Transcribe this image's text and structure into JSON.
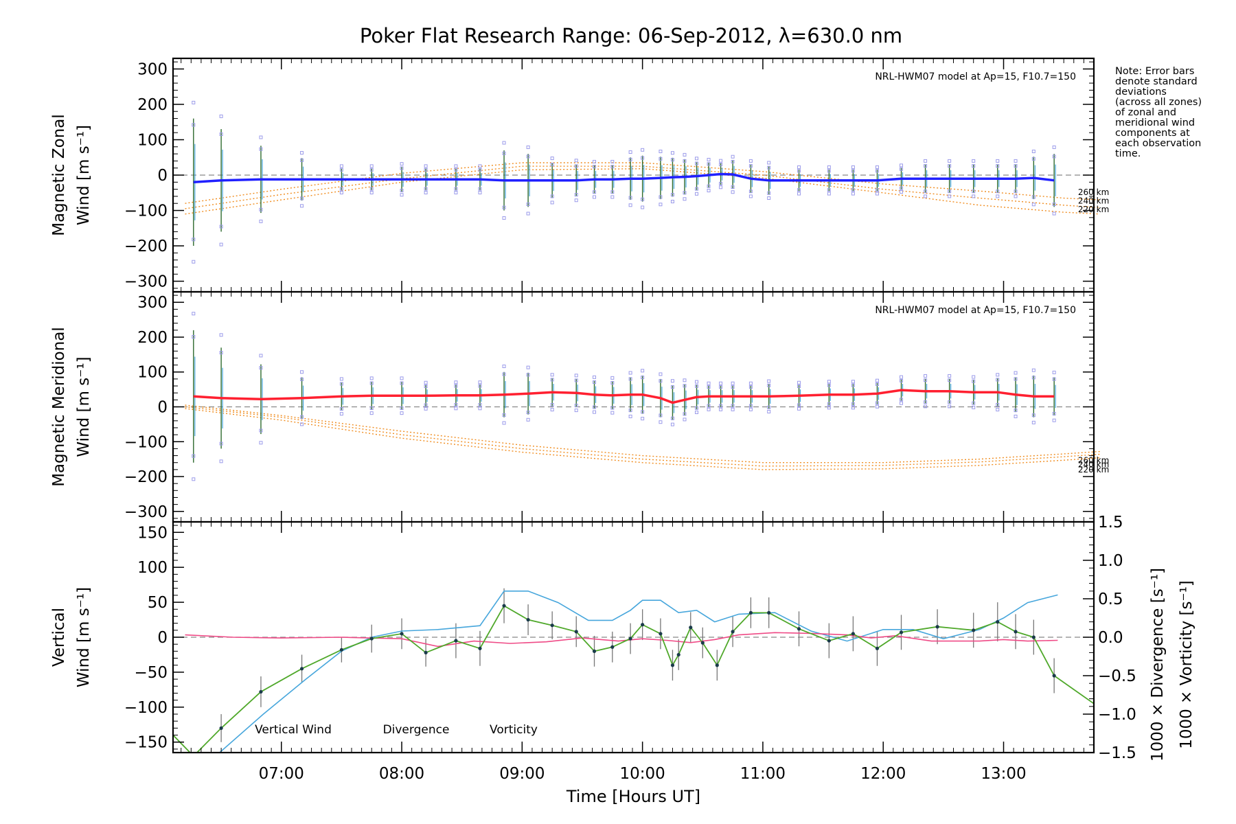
{
  "title": "Poker Flat Research Range: 06-Sep-2012, λ=630.0 nm",
  "note": [
    "Note: Error bars",
    "denote standard",
    "deviations",
    "(across all zones)",
    "of zonal and",
    "meridional wind",
    "components at",
    "each observation",
    "time."
  ],
  "colors": {
    "zonal": "#2020ff",
    "meridional": "#ff2030",
    "model": "#f08c1e",
    "vertical": "#4fa82a",
    "divergence": "#46a6dc",
    "vorticity": "#ef4a86",
    "scatter": "#9b9bea"
  },
  "chart_data": [
    {
      "type": "line",
      "ylabel": [
        "Magnetic Zonal",
        "Wind [m s⁻¹]"
      ],
      "model_label": "NRL-HWM07 model at Ap=15, F10.7=150",
      "ylim": [
        -330,
        330
      ],
      "yticks": [
        300,
        200,
        100,
        0,
        -100,
        -200,
        -300
      ],
      "series": [
        {
          "name": "Zonal wind",
          "x": [
            6.27,
            6.5,
            6.83,
            7.17,
            7.5,
            7.75,
            8.0,
            8.2,
            8.45,
            8.65,
            8.85,
            9.05,
            9.25,
            9.45,
            9.6,
            9.75,
            9.9,
            10.0,
            10.15,
            10.25,
            10.35,
            10.45,
            10.55,
            10.65,
            10.75,
            10.9,
            11.05,
            11.3,
            11.55,
            11.75,
            11.95,
            12.15,
            12.35,
            12.55,
            12.75,
            12.95,
            13.1,
            13.25,
            13.42
          ],
          "y": [
            -20,
            -15,
            -12,
            -12,
            -12,
            -12,
            -12,
            -12,
            -12,
            -12,
            -15,
            -15,
            -15,
            -15,
            -12,
            -12,
            -10,
            -10,
            -8,
            -6,
            -5,
            -3,
            0,
            3,
            2,
            -10,
            -15,
            -15,
            -15,
            -15,
            -15,
            -10,
            -10,
            -10,
            -10,
            -10,
            -10,
            -8,
            -15
          ],
          "err": [
            180,
            145,
            95,
            60,
            30,
            30,
            35,
            30,
            30,
            30,
            85,
            75,
            50,
            45,
            40,
            40,
            60,
            65,
            60,
            55,
            50,
            40,
            35,
            30,
            40,
            40,
            40,
            30,
            30,
            30,
            30,
            30,
            40,
            40,
            40,
            40,
            40,
            60,
            75
          ]
        }
      ],
      "model": [
        {
          "label": "260 km",
          "x": [
            6.2,
            7.0,
            8.0,
            9.0,
            10.0,
            11.0,
            12.0,
            12.8,
            13.5,
            13.8
          ],
          "y": [
            -80,
            -40,
            5,
            35,
            35,
            10,
            -25,
            -45,
            -65,
            -70
          ]
        },
        {
          "label": "240 km",
          "x": [
            6.2,
            7.0,
            8.0,
            9.0,
            10.0,
            11.0,
            12.0,
            12.8,
            13.5,
            13.8
          ],
          "y": [
            -95,
            -55,
            -10,
            25,
            25,
            0,
            -40,
            -65,
            -85,
            -92
          ]
        },
        {
          "label": "220 km",
          "x": [
            6.2,
            7.0,
            8.0,
            9.0,
            10.0,
            11.0,
            12.0,
            12.8,
            13.5,
            13.8
          ],
          "y": [
            -110,
            -70,
            -20,
            15,
            18,
            -8,
            -50,
            -85,
            -105,
            -110
          ]
        }
      ]
    },
    {
      "type": "line",
      "ylabel": [
        "Magnetic Meridional",
        "Wind [m s⁻¹]"
      ],
      "model_label": "NRL-HWM07 model at Ap=15, F10.7=150",
      "ylim": [
        -330,
        330
      ],
      "yticks": [
        300,
        200,
        100,
        0,
        -100,
        -200,
        -300
      ],
      "series": [
        {
          "name": "Meridional wind",
          "x": [
            6.27,
            6.5,
            6.83,
            7.17,
            7.5,
            7.75,
            8.0,
            8.2,
            8.45,
            8.65,
            8.85,
            9.05,
            9.25,
            9.45,
            9.6,
            9.75,
            9.9,
            10.0,
            10.15,
            10.25,
            10.35,
            10.45,
            10.55,
            10.65,
            10.75,
            10.9,
            11.05,
            11.3,
            11.55,
            11.75,
            11.95,
            12.15,
            12.35,
            12.55,
            12.75,
            12.95,
            13.1,
            13.25,
            13.42
          ],
          "y": [
            30,
            25,
            22,
            25,
            30,
            32,
            32,
            32,
            33,
            33,
            35,
            38,
            42,
            40,
            35,
            33,
            35,
            35,
            25,
            12,
            20,
            28,
            30,
            30,
            30,
            30,
            30,
            32,
            35,
            35,
            38,
            48,
            45,
            45,
            42,
            42,
            35,
            30,
            30
          ],
          "err": [
            190,
            145,
            100,
            60,
            40,
            40,
            40,
            30,
            30,
            30,
            65,
            60,
            40,
            40,
            40,
            40,
            50,
            55,
            55,
            50,
            45,
            35,
            30,
            30,
            30,
            30,
            35,
            30,
            30,
            30,
            30,
            30,
            35,
            35,
            35,
            40,
            50,
            60,
            55
          ]
        }
      ],
      "model": [
        {
          "label": "260 km",
          "x": [
            6.2,
            7.0,
            8.0,
            9.0,
            10.0,
            11.0,
            12.0,
            12.8,
            13.5,
            13.8
          ],
          "y": [
            5,
            -25,
            -70,
            -110,
            -140,
            -160,
            -160,
            -150,
            -135,
            -128
          ]
        },
        {
          "label": "240 km",
          "x": [
            6.2,
            7.0,
            8.0,
            9.0,
            10.0,
            11.0,
            12.0,
            12.8,
            13.5,
            13.8
          ],
          "y": [
            0,
            -30,
            -80,
            -120,
            -150,
            -170,
            -168,
            -158,
            -143,
            -136
          ]
        },
        {
          "label": "220 km",
          "x": [
            6.2,
            7.0,
            8.0,
            9.0,
            10.0,
            11.0,
            12.0,
            12.8,
            13.5,
            13.8
          ],
          "y": [
            -5,
            -38,
            -90,
            -130,
            -160,
            -180,
            -178,
            -168,
            -153,
            -146
          ]
        }
      ]
    },
    {
      "type": "line",
      "xlabel": "Time [Hours UT]",
      "ylabel": [
        "Vertical",
        "Wind [m s⁻¹]"
      ],
      "ylabel_right": [
        "1000 × Divergence [s⁻¹]",
        "1000 × Vorticity [s⁻¹]"
      ],
      "ylim": [
        -165,
        165
      ],
      "ylim_right": [
        -1.5,
        1.5
      ],
      "yticks": [
        150,
        100,
        50,
        0,
        -50,
        -100,
        -150
      ],
      "yticks_right": [
        "1.5",
        "1.0",
        "0.5",
        "0.0",
        "−0.5",
        "−1.0",
        "−1.5"
      ],
      "xticks": [
        "07:00",
        "08:00",
        "09:00",
        "10:00",
        "11:00",
        "12:00",
        "13:00"
      ],
      "xtick_values": [
        7,
        8,
        9,
        10,
        11,
        12,
        13
      ],
      "xlim": [
        6.1,
        13.75
      ],
      "legend": [
        "Vertical Wind",
        "Divergence",
        "Vorticity"
      ],
      "series": [
        {
          "name": "Vertical Wind",
          "x": [
            6.1,
            6.27,
            6.5,
            6.83,
            7.17,
            7.5,
            7.75,
            8.0,
            8.2,
            8.45,
            8.65,
            8.85,
            9.05,
            9.25,
            9.45,
            9.6,
            9.75,
            9.9,
            10.0,
            10.15,
            10.25,
            10.3,
            10.4,
            10.5,
            10.62,
            10.75,
            10.9,
            11.05,
            11.3,
            11.55,
            11.75,
            11.95,
            12.15,
            12.45,
            12.75,
            12.95,
            13.1,
            13.25,
            13.42,
            13.75
          ],
          "y": [
            -140,
            -170,
            -130,
            -78,
            -45,
            -18,
            -2,
            5,
            -22,
            -5,
            -16,
            45,
            25,
            17,
            8,
            -20,
            -14,
            -2,
            18,
            5,
            -40,
            -25,
            14,
            -8,
            -40,
            8,
            35,
            35,
            12,
            -5,
            5,
            -16,
            7,
            15,
            10,
            22,
            8,
            0,
            -55,
            -95
          ],
          "err": [
            0,
            0,
            20,
            22,
            20,
            18,
            20,
            22,
            20,
            25,
            25,
            25,
            22,
            20,
            22,
            22,
            22,
            22,
            22,
            22,
            22,
            22,
            22,
            22,
            22,
            22,
            22,
            22,
            25,
            25,
            25,
            25,
            25,
            25,
            25,
            28,
            25,
            25,
            25,
            0
          ]
        },
        {
          "name": "Divergence",
          "x": [
            6.45,
            6.85,
            7.2,
            7.5,
            7.75,
            8.0,
            8.3,
            8.65,
            8.85,
            9.05,
            9.3,
            9.55,
            9.75,
            9.9,
            10.0,
            10.15,
            10.3,
            10.45,
            10.6,
            10.8,
            11.1,
            11.4,
            11.7,
            12.0,
            12.25,
            12.5,
            12.8,
            13.0,
            13.2,
            13.45
          ],
          "y": [
            -1.55,
            -1.0,
            -0.55,
            -0.18,
            0.0,
            0.08,
            0.1,
            0.15,
            0.6,
            0.6,
            0.45,
            0.22,
            0.22,
            0.35,
            0.48,
            0.48,
            0.32,
            0.35,
            0.2,
            0.3,
            0.32,
            0.08,
            -0.05,
            0.1,
            0.1,
            -0.02,
            0.1,
            0.25,
            0.45,
            0.55
          ]
        },
        {
          "name": "Vorticity",
          "x": [
            6.2,
            6.6,
            7.0,
            7.5,
            8.0,
            8.3,
            8.6,
            8.9,
            9.2,
            9.5,
            9.8,
            10.0,
            10.2,
            10.4,
            10.6,
            10.8,
            11.1,
            11.4,
            11.7,
            11.9,
            12.1,
            12.4,
            12.8,
            13.0,
            13.2,
            13.45
          ],
          "y": [
            0.03,
            0.0,
            -0.01,
            0.0,
            -0.02,
            -0.12,
            -0.05,
            -0.08,
            -0.06,
            -0.01,
            -0.05,
            -0.02,
            -0.04,
            -0.07,
            -0.03,
            0.03,
            0.06,
            0.05,
            0.03,
            -0.01,
            0.02,
            -0.05,
            -0.05,
            -0.03,
            -0.05,
            -0.04
          ]
        }
      ]
    }
  ]
}
